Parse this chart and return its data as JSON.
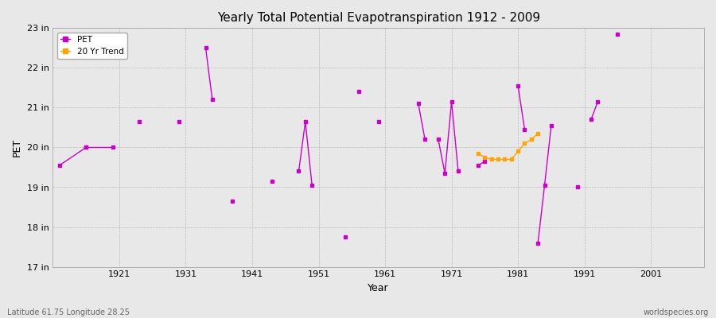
{
  "title": "Yearly Total Potential Evapotranspiration 1912 - 2009",
  "xlabel": "Year",
  "ylabel": "PET",
  "lat_lon_label": "Latitude 61.75 Longitude 28.25",
  "watermark": "worldspecies.org",
  "xlim": [
    1911,
    2009
  ],
  "ylim": [
    17,
    23
  ],
  "ytick_labels": [
    "17 in",
    "18 in",
    "19 in",
    "20 in",
    "21 in",
    "22 in",
    "23 in"
  ],
  "ytick_values": [
    17,
    18,
    19,
    20,
    21,
    22,
    23
  ],
  "xtick_values": [
    1921,
    1931,
    1941,
    1951,
    1961,
    1971,
    1981,
    1991,
    2001
  ],
  "bg_color": "#e8e8e8",
  "plot_bg_color": "#e8e8e8",
  "line_color": "#cc00cc",
  "trend_color": "#ffa500",
  "pet_data": [
    [
      1912,
      19.55
    ],
    [
      1913,
      null
    ],
    [
      1916,
      20.0
    ],
    [
      1917,
      null
    ],
    [
      1920,
      20.0
    ],
    [
      1921,
      null
    ],
    [
      1924,
      20.65
    ],
    [
      1925,
      null
    ],
    [
      1930,
      20.65
    ],
    [
      1931,
      null
    ],
    [
      1934,
      22.5
    ],
    [
      1935,
      21.2
    ],
    [
      1936,
      null
    ],
    [
      1938,
      18.65
    ],
    [
      1939,
      null
    ],
    [
      1944,
      19.15
    ],
    [
      1945,
      null
    ],
    [
      1948,
      19.4
    ],
    [
      1949,
      20.65
    ],
    [
      1950,
      19.05
    ],
    [
      1951,
      null
    ],
    [
      1955,
      17.75
    ],
    [
      1956,
      null
    ],
    [
      1957,
      21.4
    ],
    [
      1958,
      null
    ],
    [
      1960,
      20.65
    ],
    [
      1961,
      null
    ],
    [
      1966,
      21.1
    ],
    [
      1967,
      20.2
    ],
    [
      1968,
      null
    ],
    [
      1969,
      20.2
    ],
    [
      1970,
      19.35
    ],
    [
      1971,
      21.15
    ],
    [
      1972,
      19.4
    ],
    [
      1973,
      null
    ],
    [
      1975,
      19.55
    ],
    [
      1976,
      19.65
    ],
    [
      1977,
      null
    ],
    [
      1981,
      21.55
    ],
    [
      1982,
      20.45
    ],
    [
      1983,
      null
    ],
    [
      1984,
      17.6
    ],
    [
      1985,
      19.05
    ],
    [
      1986,
      20.55
    ],
    [
      1987,
      null
    ],
    [
      1990,
      19.0
    ],
    [
      1991,
      null
    ],
    [
      1992,
      20.7
    ],
    [
      1993,
      21.15
    ],
    [
      1994,
      null
    ],
    [
      1996,
      22.85
    ]
  ],
  "trend_data": [
    [
      1975,
      19.85
    ],
    [
      1976,
      19.75
    ],
    [
      1977,
      19.7
    ],
    [
      1978,
      19.7
    ],
    [
      1979,
      19.7
    ],
    [
      1980,
      19.7
    ],
    [
      1981,
      19.9
    ],
    [
      1982,
      20.1
    ],
    [
      1983,
      20.2
    ],
    [
      1984,
      20.35
    ]
  ],
  "segments": [
    [
      [
        1912,
        19.55
      ],
      [
        1916,
        20.0
      ]
    ],
    [
      [
        1916,
        20.0
      ],
      [
        1920,
        20.0
      ]
    ],
    [
      [
        1924,
        20.65
      ]
    ],
    [
      [
        1930,
        20.65
      ]
    ],
    [
      [
        1934,
        22.5
      ],
      [
        1935,
        21.2
      ]
    ],
    [
      [
        1938,
        18.65
      ]
    ],
    [
      [
        1944,
        19.15
      ]
    ],
    [
      [
        1948,
        19.4
      ],
      [
        1949,
        20.65
      ],
      [
        1950,
        19.05
      ]
    ],
    [
      [
        1955,
        17.75
      ]
    ],
    [
      [
        1957,
        21.4
      ]
    ],
    [
      [
        1960,
        20.65
      ]
    ],
    [
      [
        1966,
        21.1
      ],
      [
        1967,
        20.2
      ]
    ],
    [
      [
        1969,
        20.2
      ],
      [
        1970,
        19.35
      ],
      [
        1971,
        21.15
      ],
      [
        1972,
        19.4
      ]
    ],
    [
      [
        1975,
        19.55
      ],
      [
        1976,
        19.65
      ]
    ],
    [
      [
        1981,
        21.55
      ],
      [
        1982,
        20.45
      ]
    ],
    [
      [
        1984,
        17.6
      ],
      [
        1985,
        19.05
      ],
      [
        1986,
        20.55
      ]
    ],
    [
      [
        1990,
        19.0
      ]
    ],
    [
      [
        1992,
        20.7
      ],
      [
        1993,
        21.15
      ]
    ],
    [
      [
        1996,
        22.85
      ]
    ]
  ]
}
